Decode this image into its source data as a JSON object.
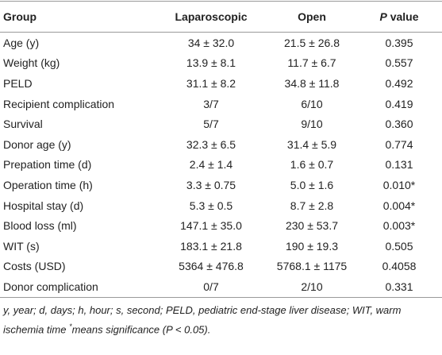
{
  "table": {
    "header": [
      "Group",
      "Laparoscopic",
      "Open",
      "P",
      "value"
    ],
    "rows": [
      [
        "Age (y)",
        "34 ± 32.0",
        "21.5 ± 26.8",
        "0.395"
      ],
      [
        "Weight (kg)",
        "13.9 ± 8.1",
        "11.7 ± 6.7",
        "0.557"
      ],
      [
        "PELD",
        "31.1 ± 8.2",
        "34.8 ± 11.8",
        "0.492"
      ],
      [
        "Recipient complication",
        "3/7",
        "6/10",
        "0.419"
      ],
      [
        "Survival",
        "5/7",
        "9/10",
        "0.360"
      ],
      [
        "Donor age (y)",
        "32.3 ± 6.5",
        "31.4 ± 5.9",
        "0.774"
      ],
      [
        "Prepation time (d)",
        "2.4 ± 1.4",
        "1.6 ± 0.7",
        "0.131"
      ],
      [
        "Operation time (h)",
        "3.3 ± 0.75",
        "5.0 ± 1.6",
        "0.010*"
      ],
      [
        "Hospital stay (d)",
        "5.3 ± 0.5",
        "8.7 ± 2.8",
        "0.004*"
      ],
      [
        "Blood loss (ml)",
        "147.1 ± 35.0",
        "230 ± 53.7",
        "0.003*"
      ],
      [
        "WIT (s)",
        "183.1 ± 21.8",
        "190 ± 19.3",
        "0.505"
      ],
      [
        "Costs (USD)",
        "5364 ± 476.8",
        "5768.1 ± 1175",
        "0.4058"
      ],
      [
        "Donor complication",
        "0/7",
        "2/10",
        "0.331"
      ]
    ]
  },
  "footnote": [
    "y, year; d, days; h, hour; s, second; PELD, pediatric end-stage liver disease; WIT, warm ischemia time",
    "*",
    "means significance (P < 0.05)."
  ]
}
